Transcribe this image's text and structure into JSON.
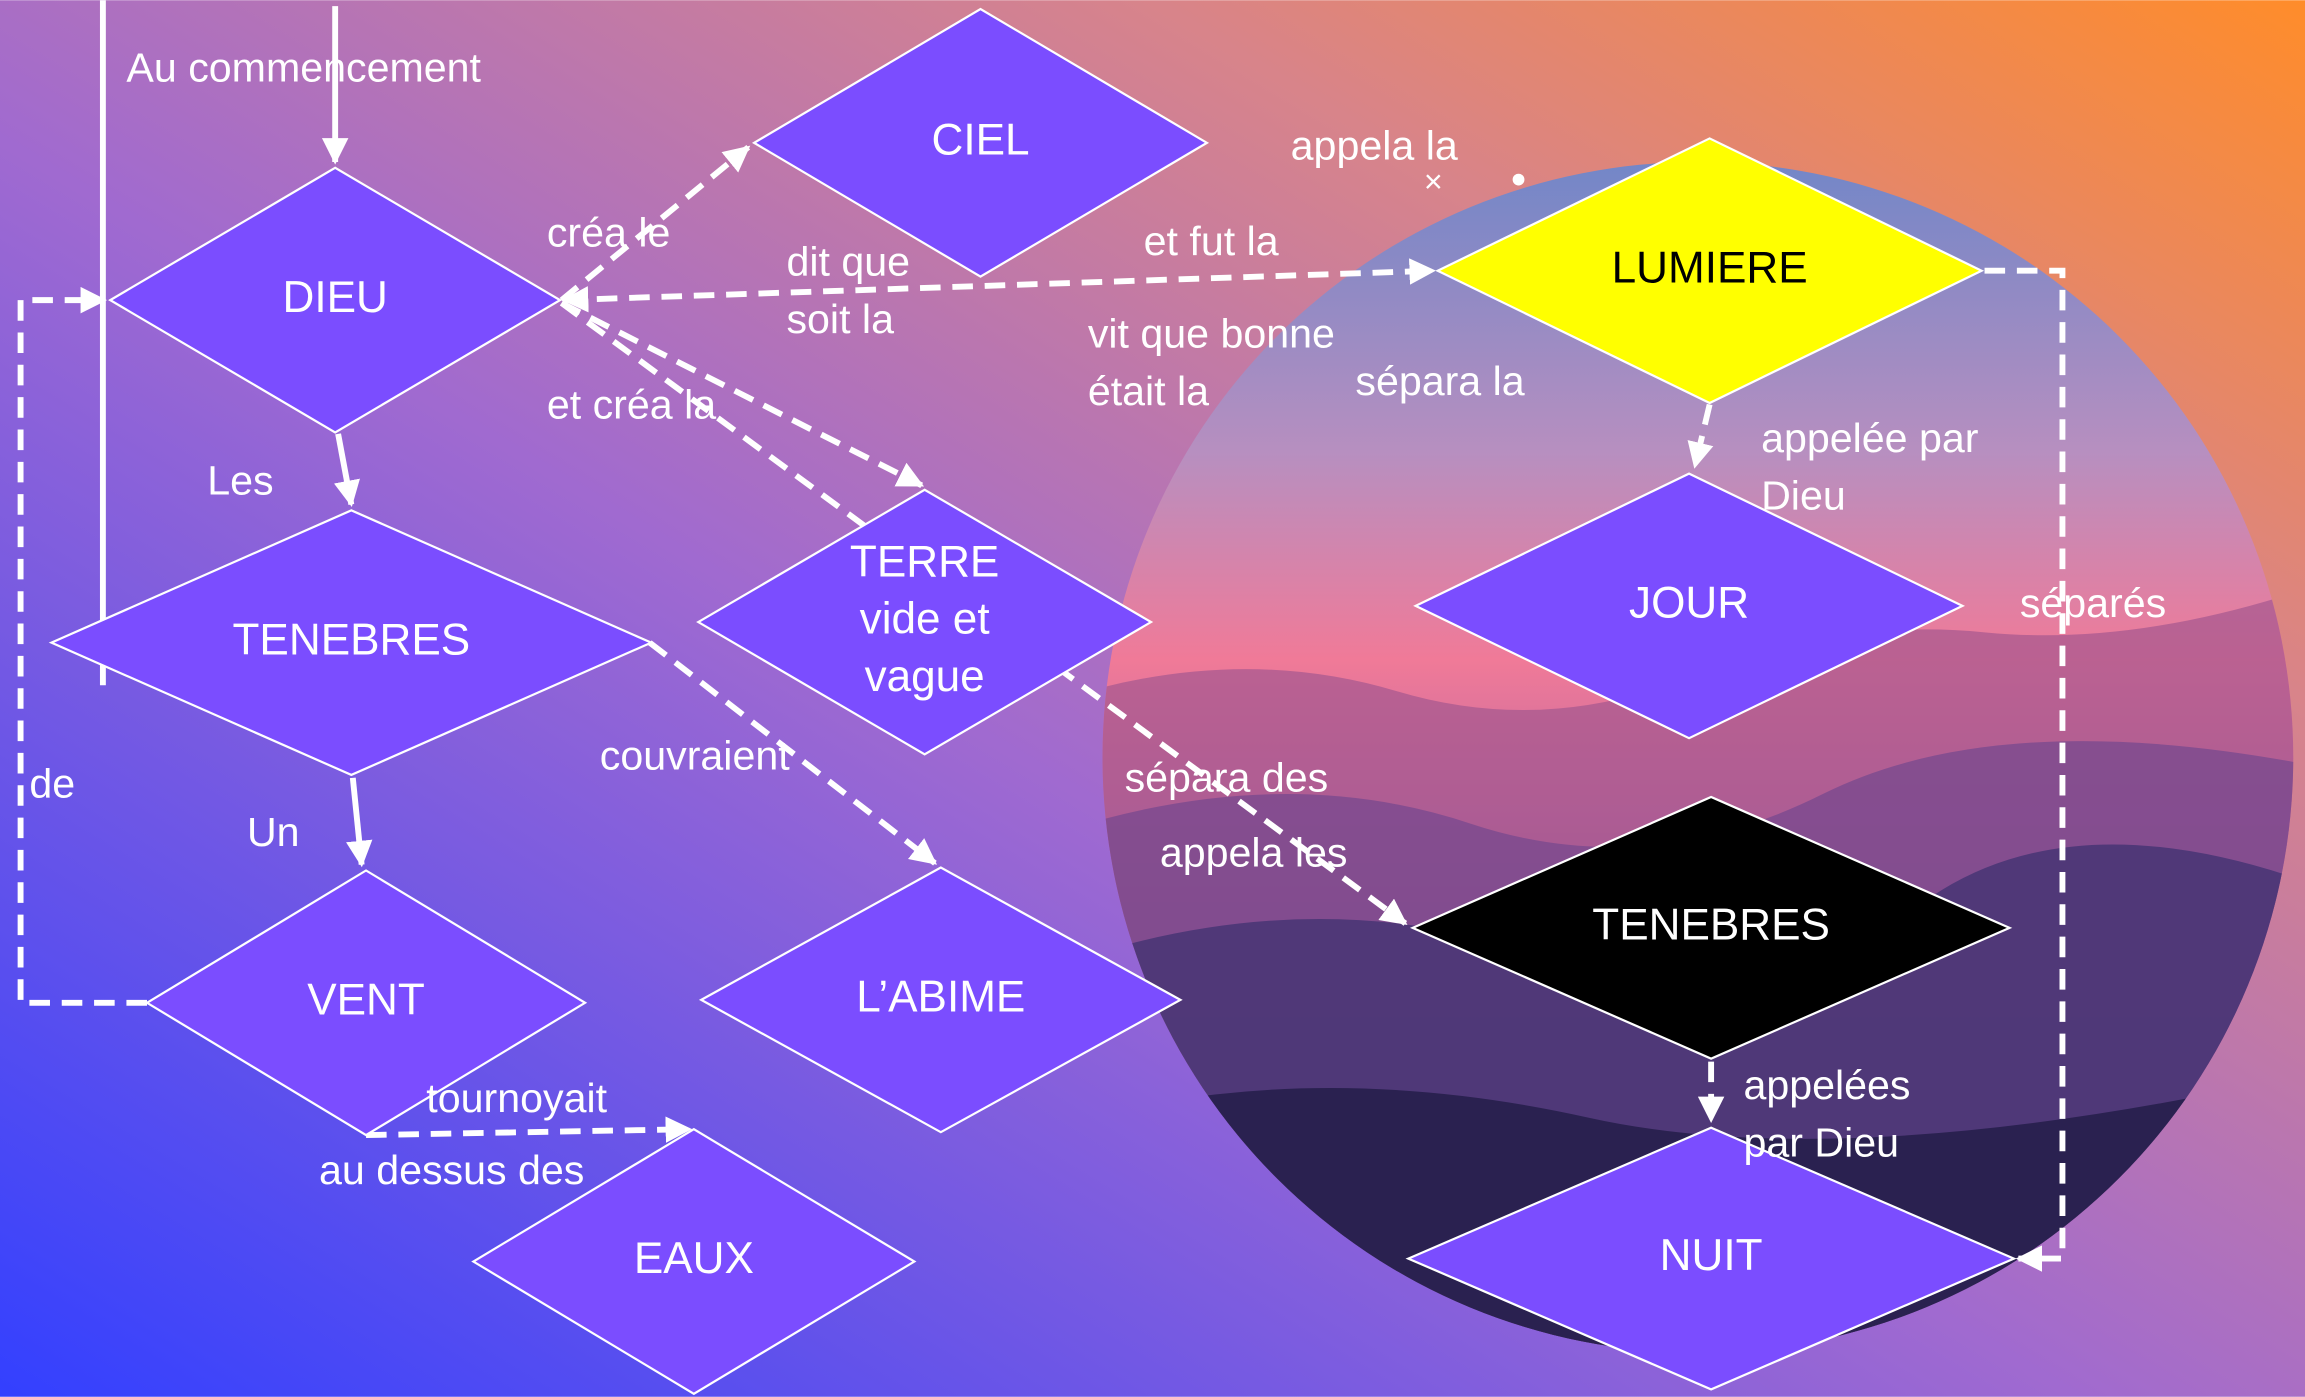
{
  "nodes": [
    {
      "lines": [
        "CIEL"
      ]
    },
    {
      "lines": [
        "DIEU"
      ]
    },
    {
      "lines": [
        "LUMIERE"
      ]
    },
    {
      "lines": [
        "JOUR"
      ]
    },
    {
      "lines": [
        "TERRE",
        "vide et",
        "vague"
      ]
    },
    {
      "lines": [
        "TENEBRES"
      ]
    },
    {
      "lines": [
        "TENEBRES"
      ]
    },
    {
      "lines": [
        "VENT"
      ]
    },
    {
      "lines": [
        "L’ABIME"
      ]
    },
    {
      "lines": [
        "EAUX"
      ]
    },
    {
      "lines": [
        "NUIT"
      ]
    }
  ],
  "edge_labels": [
    {
      "lines": [
        "Au commencement"
      ]
    },
    {
      "lines": [
        "créa le"
      ]
    },
    {
      "lines": [
        "dit que",
        "soit la"
      ]
    },
    {
      "lines": [
        "et fut la"
      ]
    },
    {
      "lines": [
        "appela la"
      ]
    },
    {
      "lines": [
        "vit que bonne",
        "était la"
      ]
    },
    {
      "lines": [
        "sépara la"
      ]
    },
    {
      "lines": [
        "et créa la"
      ]
    },
    {
      "lines": [
        "Les"
      ]
    },
    {
      "lines": [
        "appelée par",
        "Dieu"
      ]
    },
    {
      "lines": [
        "séparés"
      ]
    },
    {
      "lines": [
        "couvraient"
      ]
    },
    {
      "lines": [
        "sépara des"
      ]
    },
    {
      "lines": [
        "appela les"
      ]
    },
    {
      "lines": [
        "de"
      ]
    },
    {
      "lines": [
        "Un"
      ]
    },
    {
      "lines": [
        "tournoyait"
      ]
    },
    {
      "lines": [
        "au dessus des"
      ]
    },
    {
      "lines": [
        "appelées",
        "par Dieu"
      ]
    }
  ]
}
